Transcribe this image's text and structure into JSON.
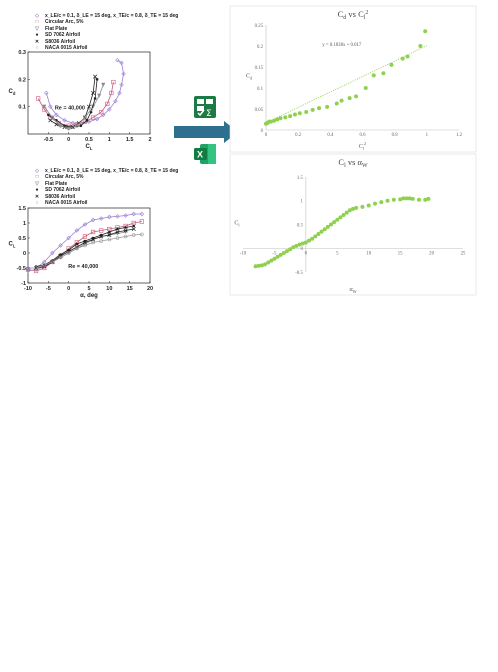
{
  "legend": {
    "items": [
      {
        "marker": "◇",
        "label": "x_LE/c = 0.1, δ_LE = 15 deg, x_TE/c = 0.8, δ_TE = 15 deg",
        "color": "#9b7fd4"
      },
      {
        "marker": "□",
        "label": "Circular Arc, 5%",
        "color": "#c85a7a"
      },
      {
        "marker": "▽",
        "label": "Flat Plate",
        "color": "#8a8a9a"
      },
      {
        "marker": "●",
        "label": "SD 7062 Airfoil",
        "color": "#222222"
      },
      {
        "marker": "✕",
        "label": "S8036 Airfoil",
        "color": "#222222"
      },
      {
        "marker": "○",
        "label": "NACA 0015 Airfoil",
        "color": "#9a9a9a"
      }
    ]
  },
  "icons": {
    "top": "spreadsheet-formula-icon",
    "bottom": "excel-icon",
    "arrow": "arrow-right"
  },
  "chart_data": [
    {
      "type": "line",
      "title": "",
      "xlabel": "C_L",
      "ylabel": "C_d",
      "xlim": [
        -1,
        2
      ],
      "ylim": [
        0,
        0.3
      ],
      "xticks": [
        "-0.5",
        "0",
        "0.5",
        "1",
        "1.5",
        "2"
      ],
      "yticks": [
        "0.1",
        "0.2",
        "0.3"
      ],
      "annotation": "Re = 40,000",
      "series": [
        {
          "name": "x_LE/c = 0.1, δ_LE = 15 deg, x_TE/c = 0.8, δ_TE = 15 deg",
          "color": "#9b7fd4",
          "x": [
            -0.55,
            -0.45,
            -0.3,
            -0.1,
            0.1,
            0.3,
            0.5,
            0.7,
            0.85,
            1.0,
            1.15,
            1.25,
            1.3,
            1.35,
            1.3,
            1.2
          ],
          "y": [
            0.15,
            0.1,
            0.07,
            0.05,
            0.04,
            0.04,
            0.045,
            0.055,
            0.07,
            0.09,
            0.12,
            0.15,
            0.18,
            0.22,
            0.26,
            0.27
          ]
        },
        {
          "name": "Circular Arc, 5%",
          "color": "#c85a7a",
          "x": [
            -0.75,
            -0.6,
            -0.45,
            -0.25,
            0.0,
            0.2,
            0.4,
            0.6,
            0.8,
            0.95,
            1.05,
            1.1
          ],
          "y": [
            0.13,
            0.09,
            0.06,
            0.04,
            0.03,
            0.035,
            0.045,
            0.06,
            0.08,
            0.11,
            0.15,
            0.19
          ]
        },
        {
          "name": "Flat Plate",
          "color": "#8a8a9a",
          "x": [
            -0.6,
            -0.4,
            -0.2,
            0.0,
            0.2,
            0.4,
            0.6,
            0.75,
            0.85
          ],
          "y": [
            0.1,
            0.06,
            0.03,
            0.02,
            0.03,
            0.06,
            0.1,
            0.14,
            0.18
          ]
        },
        {
          "name": "SD 7062 Airfoil",
          "color": "#222222",
          "x": [
            -0.5,
            -0.3,
            -0.1,
            0.1,
            0.3,
            0.45,
            0.55,
            0.65,
            0.7
          ],
          "y": [
            0.07,
            0.05,
            0.03,
            0.025,
            0.03,
            0.05,
            0.08,
            0.13,
            0.2
          ]
        },
        {
          "name": "S8036 Airfoil",
          "color": "#222222",
          "x": [
            -0.45,
            -0.3,
            -0.1,
            0.1,
            0.25,
            0.4,
            0.5,
            0.6,
            0.65
          ],
          "y": [
            0.05,
            0.035,
            0.025,
            0.025,
            0.04,
            0.06,
            0.1,
            0.15,
            0.21
          ]
        },
        {
          "name": "NACA 0015 Airfoil",
          "color": "#9a9a9a",
          "x": [
            -0.4,
            -0.2,
            0.0,
            0.2,
            0.4,
            0.55
          ],
          "y": [
            0.06,
            0.03,
            0.02,
            0.03,
            0.06,
            0.09
          ]
        }
      ]
    },
    {
      "type": "line",
      "title": "",
      "xlabel": "α, deg",
      "ylabel": "C_L",
      "xlim": [
        -10,
        20
      ],
      "ylim": [
        -1,
        1.5
      ],
      "xticks": [
        "-10",
        "-5",
        "0",
        "5",
        "10",
        "15",
        "20"
      ],
      "yticks": [
        "-1",
        "-0.5",
        "0",
        "0.5",
        "1",
        "1.5"
      ],
      "annotation": "Re = 40,000",
      "series": [
        {
          "name": "x_LE/c = 0.1, δ_LE = 15 deg, x_TE/c = 0.8, δ_TE = 15 deg",
          "color": "#9b7fd4",
          "x": [
            -10,
            -8,
            -6,
            -4,
            -2,
            0,
            2,
            4,
            6,
            8,
            10,
            12,
            14,
            16,
            18
          ],
          "y": [
            -0.5,
            -0.5,
            -0.3,
            0.0,
            0.25,
            0.5,
            0.75,
            0.95,
            1.1,
            1.15,
            1.2,
            1.22,
            1.25,
            1.3,
            1.3
          ]
        },
        {
          "name": "Circular Arc, 5%",
          "color": "#c85a7a",
          "x": [
            -10,
            -8,
            -6,
            -4,
            -2,
            0,
            2,
            4,
            6,
            8,
            10,
            12,
            14,
            16,
            18
          ],
          "y": [
            -0.55,
            -0.6,
            -0.5,
            -0.3,
            -0.1,
            0.15,
            0.35,
            0.55,
            0.7,
            0.75,
            0.8,
            0.85,
            0.9,
            1.0,
            1.05
          ]
        },
        {
          "name": "Flat Plate",
          "color": "#8a8a9a",
          "x": [
            -10,
            -8,
            -6,
            -4,
            -2,
            0,
            2,
            4,
            6,
            8,
            10,
            12,
            14
          ],
          "y": [
            -0.6,
            -0.55,
            -0.45,
            -0.3,
            -0.15,
            0.0,
            0.15,
            0.3,
            0.45,
            0.55,
            0.6,
            0.65,
            0.7
          ]
        },
        {
          "name": "SD 7062 Airfoil",
          "color": "#222222",
          "x": [
            -8,
            -6,
            -4,
            -2,
            0,
            2,
            4,
            6,
            8,
            10,
            12,
            14,
            16
          ],
          "y": [
            -0.45,
            -0.4,
            -0.25,
            -0.05,
            0.1,
            0.3,
            0.4,
            0.5,
            0.6,
            0.7,
            0.8,
            0.85,
            0.9
          ]
        },
        {
          "name": "S8036 Airfoil",
          "color": "#222222",
          "x": [
            -8,
            -6,
            -4,
            -2,
            0,
            2,
            4,
            6,
            8,
            10,
            12,
            14,
            16
          ],
          "y": [
            -0.5,
            -0.45,
            -0.3,
            -0.1,
            0.05,
            0.2,
            0.35,
            0.45,
            0.55,
            0.6,
            0.7,
            0.75,
            0.8
          ]
        },
        {
          "name": "NACA 0015 Airfoil",
          "color": "#9a9a9a",
          "x": [
            -8,
            -6,
            -4,
            -2,
            0,
            2,
            4,
            6,
            8,
            10,
            12,
            14,
            16,
            18
          ],
          "y": [
            -0.5,
            -0.4,
            -0.3,
            -0.15,
            0.0,
            0.15,
            0.25,
            0.35,
            0.4,
            0.45,
            0.5,
            0.55,
            0.6,
            0.62
          ]
        }
      ]
    },
    {
      "type": "scatter",
      "title": "C_d vs C_l^2",
      "xlabel": "C_l^2",
      "ylabel": "C_d",
      "xlim": [
        0,
        1.2
      ],
      "ylim": [
        0,
        0.25
      ],
      "xticks": [
        "0",
        "0.2",
        "0.4",
        "0.6",
        "0.8",
        "1",
        "1.2"
      ],
      "yticks": [
        "0",
        "0.05",
        "0.1",
        "0.15",
        "0.2",
        "0.25"
      ],
      "grid": false,
      "trendline": {
        "label": "y = 0.1838x + 0.017",
        "slope": 0.1838,
        "intercept": 0.017,
        "x_range": [
          0,
          1.0
        ]
      },
      "color": "#8fd14f",
      "x": [
        0.0,
        0.01,
        0.02,
        0.03,
        0.05,
        0.07,
        0.09,
        0.12,
        0.15,
        0.18,
        0.21,
        0.25,
        0.29,
        0.33,
        0.38,
        0.44,
        0.47,
        0.52,
        0.56,
        0.62,
        0.67,
        0.73,
        0.78,
        0.85,
        0.88,
        0.96,
        0.99
      ],
      "y": [
        0.015,
        0.017,
        0.02,
        0.02,
        0.022,
        0.025,
        0.028,
        0.03,
        0.033,
        0.037,
        0.04,
        0.043,
        0.048,
        0.052,
        0.055,
        0.063,
        0.07,
        0.076,
        0.08,
        0.1,
        0.13,
        0.135,
        0.155,
        0.17,
        0.175,
        0.2,
        0.235
      ]
    },
    {
      "type": "scatter",
      "title": "C_l vs α_W",
      "xlabel": "α_W",
      "ylabel": "C_l",
      "xlim": [
        -10,
        25
      ],
      "ylim": [
        -0.5,
        1.5
      ],
      "xticks": [
        "-10",
        "-5",
        "0",
        "5",
        "10",
        "15",
        "20",
        "25"
      ],
      "yticks": [
        "-0.5",
        "0",
        "0.5",
        "1",
        "1.5"
      ],
      "grid": false,
      "color": "#8fd14f",
      "x": [
        -8,
        -7.5,
        -7,
        -6.5,
        -6,
        -5.5,
        -5,
        -4.5,
        -4,
        -3.5,
        -3,
        -2.5,
        -2,
        -1.5,
        -1,
        -0.5,
        0,
        0.5,
        1,
        1.5,
        2,
        2.5,
        3,
        3.5,
        4,
        4.5,
        5,
        5.5,
        6,
        6.5,
        7,
        7.5,
        8,
        9,
        10,
        11,
        12,
        13,
        14,
        15,
        15.5,
        16,
        16.5,
        17,
        18,
        19,
        19.5
      ],
      "y": [
        -0.38,
        -0.37,
        -0.36,
        -0.34,
        -0.3,
        -0.26,
        -0.22,
        -0.18,
        -0.14,
        -0.1,
        -0.06,
        -0.02,
        0.02,
        0.05,
        0.08,
        0.1,
        0.12,
        0.16,
        0.2,
        0.25,
        0.3,
        0.35,
        0.4,
        0.45,
        0.5,
        0.55,
        0.6,
        0.65,
        0.7,
        0.75,
        0.8,
        0.83,
        0.85,
        0.87,
        0.9,
        0.94,
        0.97,
        1.0,
        1.02,
        1.03,
        1.05,
        1.05,
        1.05,
        1.04,
        1.02,
        1.02,
        1.04
      ]
    }
  ]
}
